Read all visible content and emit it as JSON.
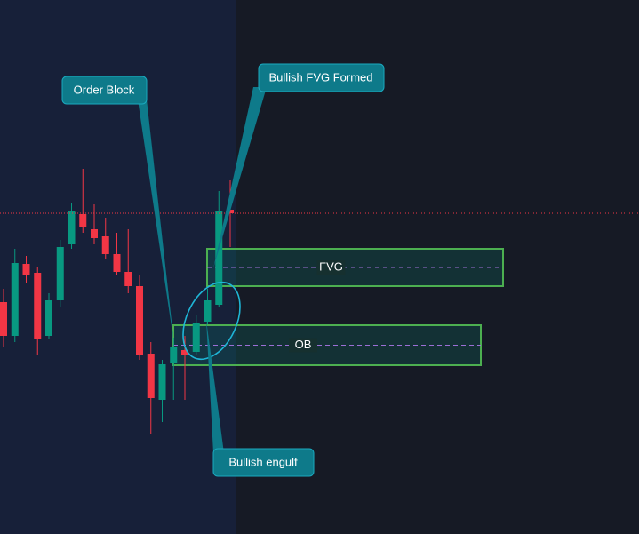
{
  "chart_data": {
    "type": "candlestick",
    "open": [
      261,
      223,
      304,
      294,
      223,
      263,
      326,
      360,
      343,
      335,
      315,
      295,
      279,
      203,
      151,
      193,
      207,
      205,
      239,
      258,
      365
    ],
    "high": [
      276,
      321,
      313,
      301,
      271,
      331,
      373,
      411,
      371,
      356,
      339,
      343,
      291,
      216,
      196,
      221,
      223,
      246,
      276,
      386,
      398
    ],
    "low": [
      211,
      216,
      283,
      201,
      219,
      256,
      321,
      339,
      326,
      309,
      291,
      271,
      196,
      113,
      126,
      151,
      151,
      201,
      236,
      256,
      323
    ],
    "close": [
      223,
      305,
      291,
      219,
      263,
      323,
      363,
      345,
      333,
      315,
      295,
      279,
      201,
      153,
      191,
      211,
      201,
      238,
      263,
      363,
      361
    ],
    "ylim": [
      0,
      601
    ],
    "up_color": "#089981",
    "down_color": "#f23645",
    "zones": [
      {
        "label": "FVG",
        "top": 321,
        "bottom": 279
      },
      {
        "label": "OB",
        "top": 235,
        "bottom": 190
      }
    ],
    "annotations": [
      "Order Block",
      "Bullish FVG Formed",
      "Bullish engulf"
    ]
  }
}
